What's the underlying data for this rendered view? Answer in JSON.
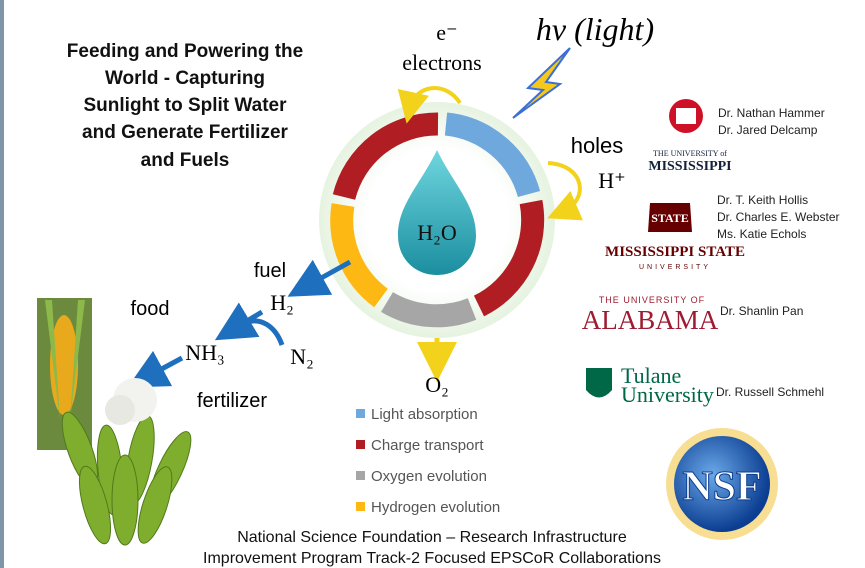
{
  "header": {
    "title_lines": [
      "Feeding and Powering the",
      "World - Capturing",
      "Sunlight to Split Water",
      "and Generate Fertilizer",
      "and Fuels"
    ]
  },
  "cycle": {
    "electron_symbol": "e⁻",
    "electrons": "electrons",
    "light": "hv (light)",
    "holes": "holes",
    "proton": "H⁺",
    "center": "H₂O",
    "fuel": "fuel",
    "hydrogen": "H₂",
    "food": "food",
    "ammonia": "NH₃",
    "nitrogen": "N₂",
    "fertilizer": "fertilizer",
    "oxygen": "O₂"
  },
  "legend": [
    "Light absorption",
    "Charge transport",
    "Oxygen evolution",
    "Hydrogen evolution"
  ],
  "institutions": [
    {
      "logo": [
        "THE UNIVERSITY of",
        "MISSISSIPPI"
      ],
      "people": [
        "Dr. Nathan Hammer",
        "Dr. Jared Delcamp"
      ]
    },
    {
      "logo": [
        "STATE",
        "MISSISSIPPI STATE",
        "UNIVERSITY"
      ],
      "people": [
        "Dr. T. Keith Hollis",
        "Dr. Charles E. Webster",
        "Ms. Katie Echols"
      ]
    },
    {
      "logo": [
        "THE UNIVERSITY OF",
        "ALABAMA"
      ],
      "people": [
        "Dr. Shanlin Pan"
      ]
    },
    {
      "logo": [
        "Tulane",
        "University"
      ],
      "people": [
        "Dr. Russell Schmehl"
      ]
    },
    {
      "logo": [
        "NSF"
      ],
      "people": []
    }
  ],
  "footer": [
    "National Science Foundation – Research Infrastructure",
    "Improvement  Program Track-2 Focused EPSCoR Collaborations"
  ]
}
